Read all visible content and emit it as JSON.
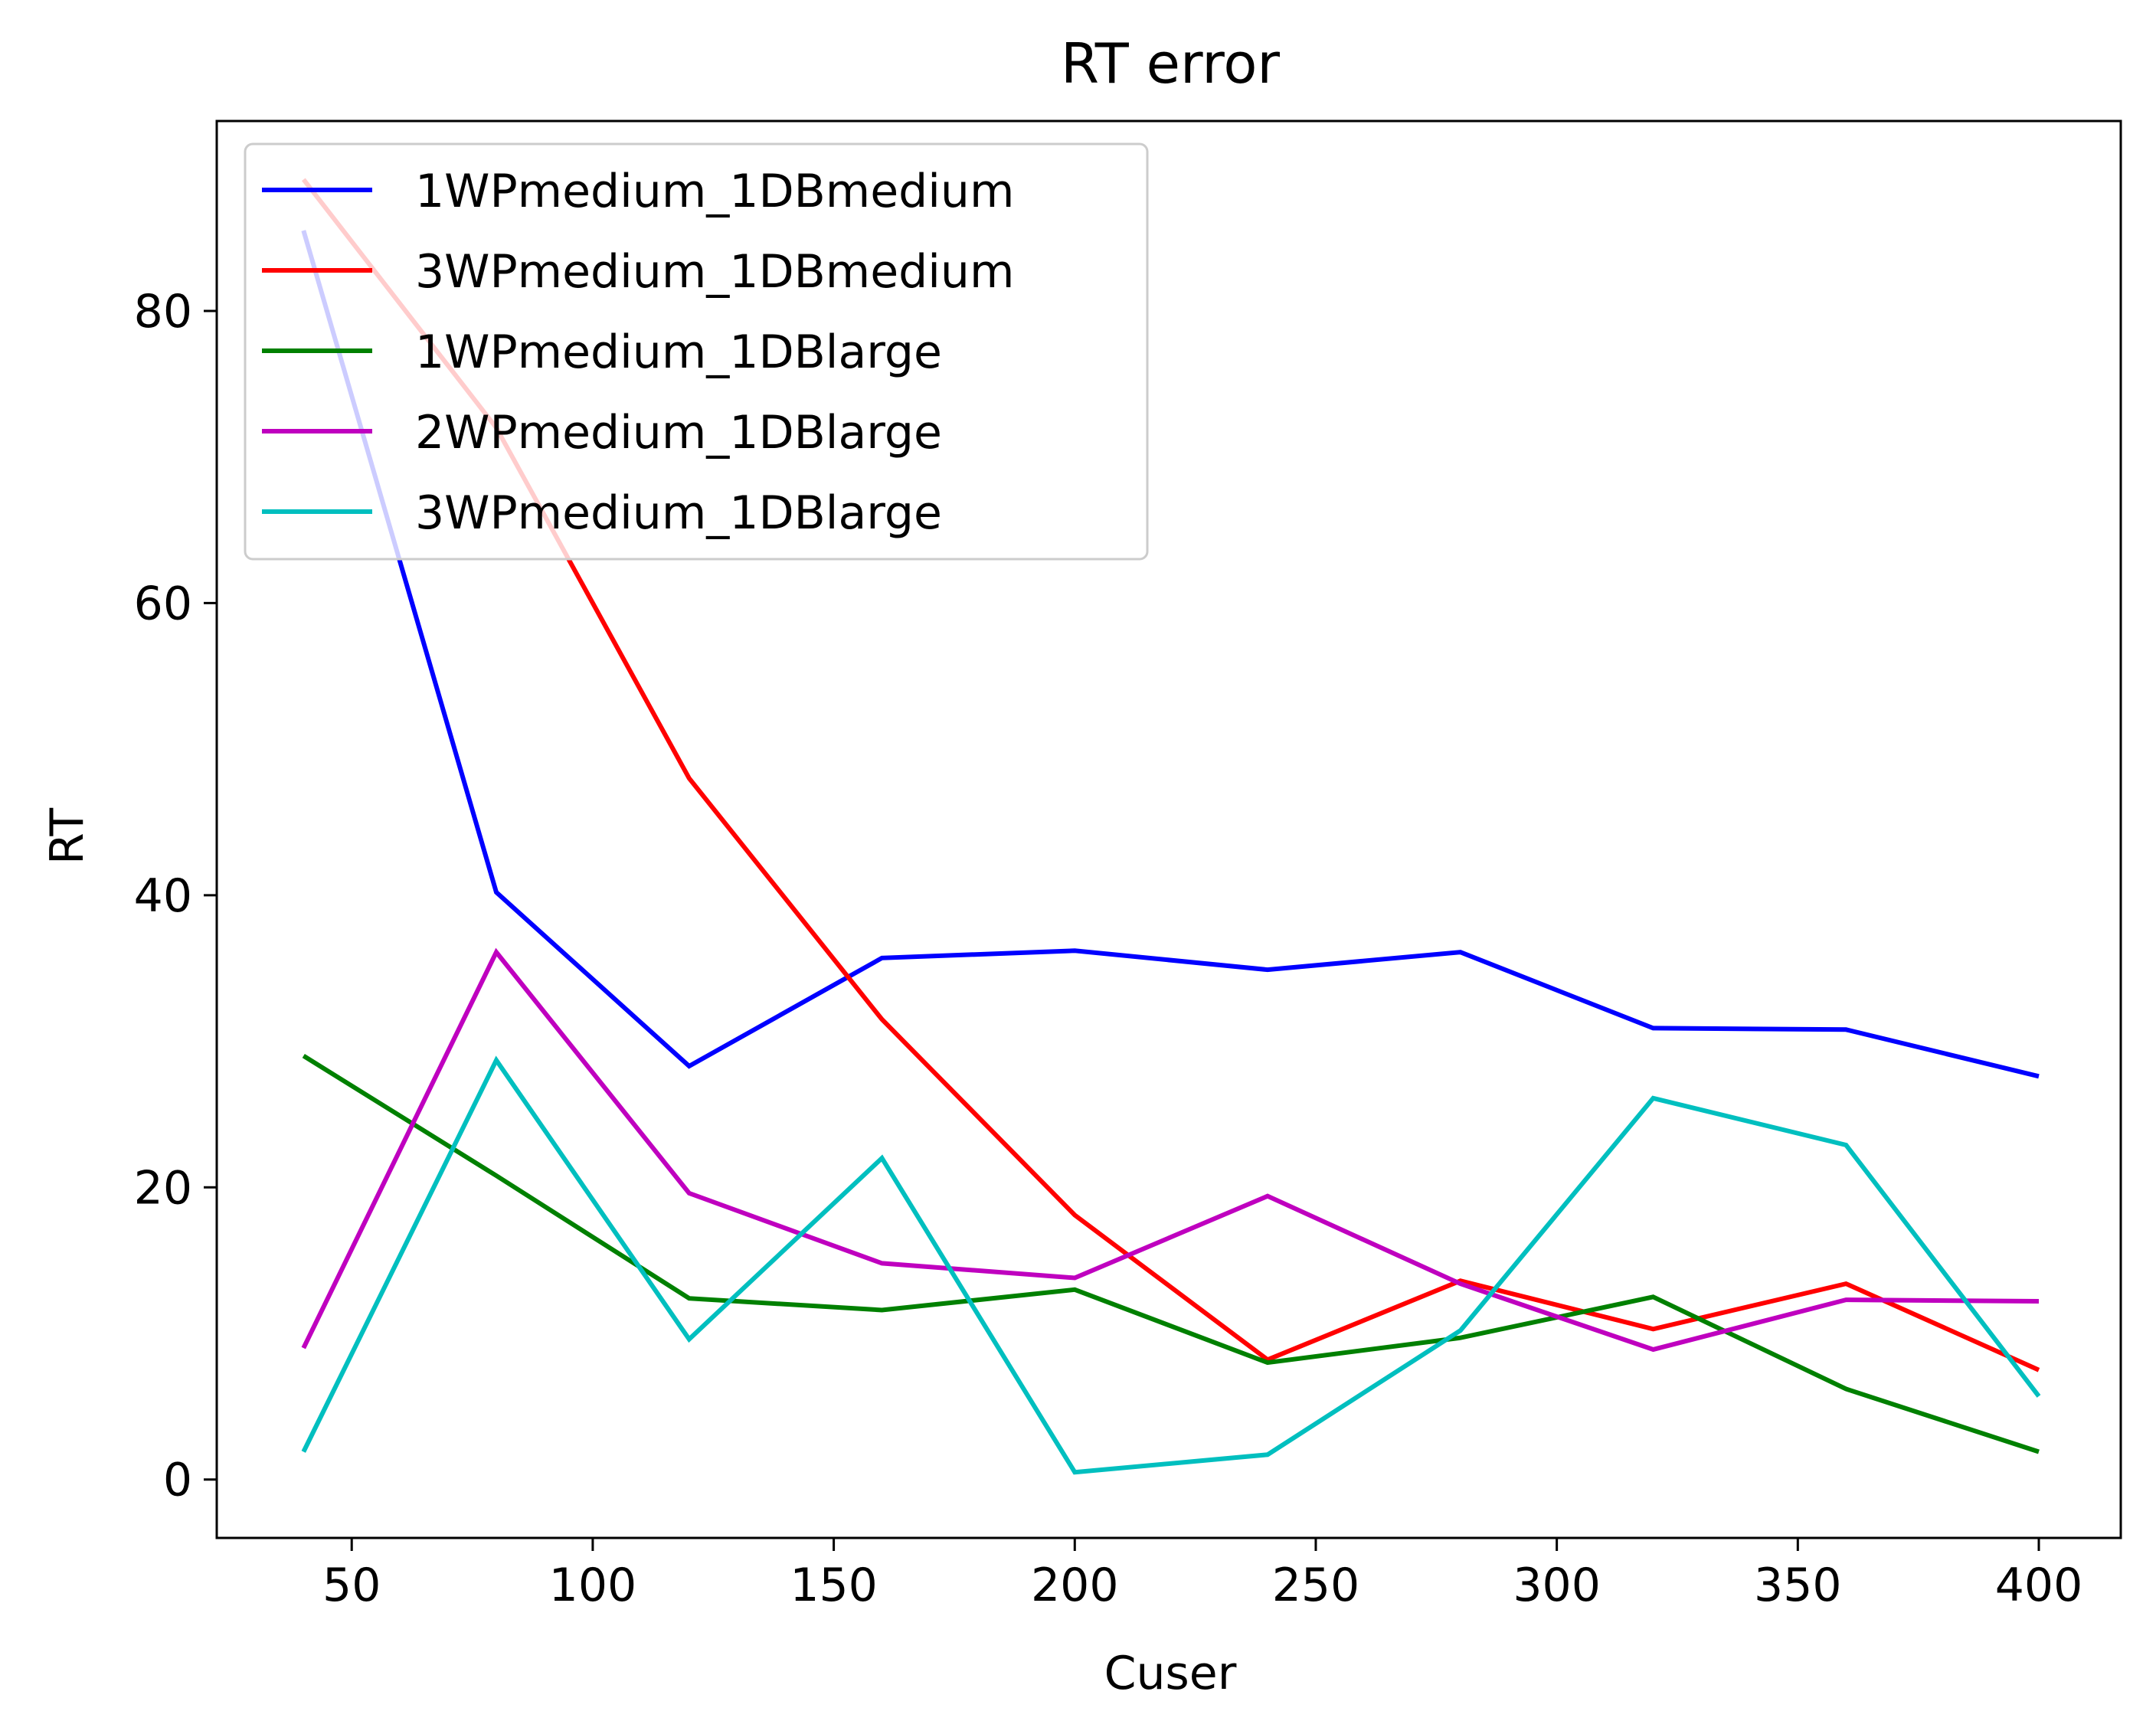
{
  "chart_data": {
    "type": "line",
    "title": "RT error",
    "xlabel": "Cuser",
    "ylabel": "RT",
    "x": [
      40,
      80,
      120,
      160,
      200,
      240,
      280,
      320,
      360,
      400
    ],
    "xlim": [
      22,
      417
    ],
    "ylim": [
      -4,
      93
    ],
    "xticks": [
      50,
      100,
      150,
      200,
      250,
      300,
      350,
      400
    ],
    "yticks": [
      0,
      20,
      40,
      60,
      80
    ],
    "grid": false,
    "legend_position": "top-left",
    "series": [
      {
        "name": "1WPmedium_1DBmedium",
        "color": "#0000ff",
        "values": [
          85.5,
          40.2,
          28.3,
          35.7,
          36.2,
          34.9,
          36.1,
          30.9,
          30.8,
          27.6
        ]
      },
      {
        "name": "3WPmedium_1DBmedium",
        "color": "#ff0000",
        "values": [
          89.0,
          72.0,
          48.0,
          31.5,
          18.1,
          8.2,
          13.6,
          10.3,
          13.4,
          7.5
        ]
      },
      {
        "name": "1WPmedium_1DBlarge",
        "color": "#008000",
        "values": [
          29.0,
          20.8,
          12.4,
          11.6,
          13.0,
          8.0,
          9.7,
          12.5,
          6.2,
          1.9
        ]
      },
      {
        "name": "2WPmedium_1DBlarge",
        "color": "#bf00bf",
        "values": [
          9.0,
          36.1,
          19.6,
          14.8,
          13.8,
          19.4,
          13.4,
          8.9,
          12.3,
          12.2
        ]
      },
      {
        "name": "3WPmedium_1DBlarge",
        "color": "#00bfbf",
        "values": [
          1.9,
          28.7,
          9.6,
          22.0,
          0.5,
          1.7,
          10.2,
          26.1,
          22.9,
          5.7
        ]
      }
    ]
  }
}
